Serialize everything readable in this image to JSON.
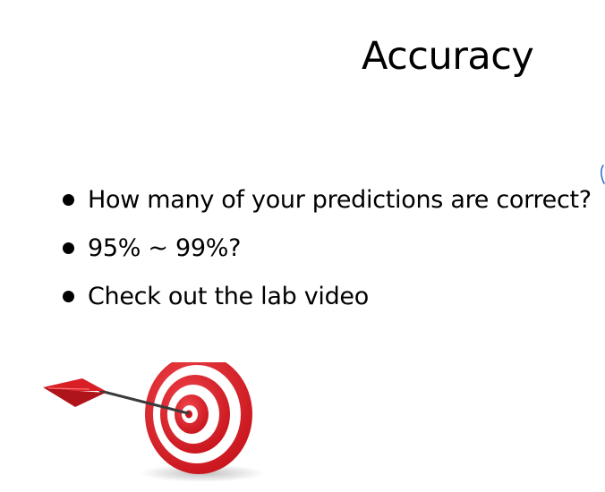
{
  "slide": {
    "title": "Accuracy",
    "bullets": [
      {
        "text": "How many of your predictions are correct?"
      },
      {
        "text": "95% ~ 99%?"
      },
      {
        "text": "Check out the lab video"
      }
    ]
  },
  "colors": {
    "background": "#ffffff",
    "text": "#000000",
    "target_red": "#e1232b",
    "cursor_blue": "#2f6fd6"
  },
  "icons": {
    "target": "dartboard-target-icon",
    "dart": "dart-arrow-icon",
    "cursor": "pen-cursor-icon"
  }
}
